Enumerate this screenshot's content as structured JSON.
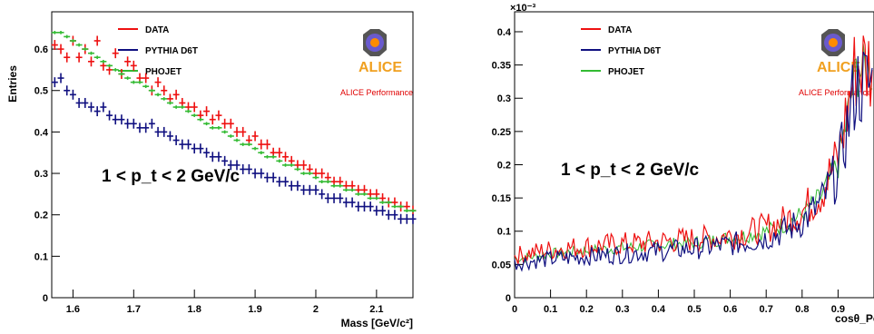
{
  "chart_data": [
    {
      "type": "scatter",
      "ylabel": "Entries",
      "xlabel": "Mass [GeV/c²]",
      "xlim": [
        1.565,
        2.16
      ],
      "ylim": [
        0,
        0.69
      ],
      "xticks": [
        "1.6",
        "1.7",
        "1.8",
        "1.9",
        "2",
        "2.1"
      ],
      "yticks": [
        "0",
        "0.1",
        "0.2",
        "0.3",
        "0.4",
        "0.5",
        "0.6"
      ],
      "annotation": "1 < p_t < 2 GeV/c",
      "performance_label": "ALICE Performance",
      "logo_text": "ALICE",
      "legend_position": "top-center",
      "series": [
        {
          "name": "DATA",
          "color": "#ee1111",
          "start": 1.57,
          "step": 0.01,
          "values": [
            0.61,
            0.6,
            0.58,
            0.62,
            0.58,
            0.6,
            0.57,
            0.62,
            0.56,
            0.55,
            0.59,
            0.54,
            0.57,
            0.56,
            0.53,
            0.53,
            0.5,
            0.52,
            0.5,
            0.48,
            0.49,
            0.47,
            0.46,
            0.46,
            0.44,
            0.45,
            0.43,
            0.44,
            0.42,
            0.42,
            0.4,
            0.4,
            0.38,
            0.39,
            0.37,
            0.37,
            0.35,
            0.35,
            0.34,
            0.33,
            0.32,
            0.32,
            0.31,
            0.3,
            0.3,
            0.29,
            0.28,
            0.28,
            0.27,
            0.27,
            0.26,
            0.26,
            0.25,
            0.25,
            0.24,
            0.23,
            0.23,
            0.22,
            0.22,
            0.21
          ]
        },
        {
          "name": "PYTHIA D6T",
          "color": "#101080",
          "start": 1.57,
          "step": 0.01,
          "values": [
            0.52,
            0.53,
            0.5,
            0.49,
            0.47,
            0.47,
            0.46,
            0.45,
            0.46,
            0.44,
            0.43,
            0.43,
            0.42,
            0.42,
            0.41,
            0.41,
            0.42,
            0.4,
            0.4,
            0.39,
            0.38,
            0.37,
            0.37,
            0.36,
            0.36,
            0.35,
            0.34,
            0.34,
            0.33,
            0.32,
            0.32,
            0.31,
            0.31,
            0.3,
            0.3,
            0.29,
            0.29,
            0.28,
            0.28,
            0.27,
            0.27,
            0.26,
            0.26,
            0.26,
            0.25,
            0.24,
            0.24,
            0.24,
            0.23,
            0.23,
            0.22,
            0.22,
            0.22,
            0.21,
            0.21,
            0.2,
            0.2,
            0.19,
            0.19,
            0.19
          ]
        },
        {
          "name": "PHOJET",
          "color": "#33bb33",
          "start": 1.57,
          "step": 0.01,
          "values": [
            0.64,
            0.64,
            0.63,
            0.62,
            0.61,
            0.6,
            0.59,
            0.58,
            0.57,
            0.56,
            0.55,
            0.54,
            0.53,
            0.52,
            0.52,
            0.51,
            0.5,
            0.49,
            0.48,
            0.47,
            0.46,
            0.46,
            0.45,
            0.44,
            0.43,
            0.42,
            0.41,
            0.41,
            0.4,
            0.39,
            0.38,
            0.37,
            0.37,
            0.36,
            0.35,
            0.34,
            0.34,
            0.33,
            0.32,
            0.32,
            0.31,
            0.3,
            0.3,
            0.29,
            0.28,
            0.28,
            0.27,
            0.27,
            0.26,
            0.26,
            0.25,
            0.25,
            0.24,
            0.24,
            0.23,
            0.23,
            0.22,
            0.22,
            0.21,
            0.21
          ]
        }
      ]
    },
    {
      "type": "line",
      "xlabel": "cosθ_Point",
      "xlim": [
        0,
        1.0
      ],
      "ylim": [
        0,
        0.00043
      ],
      "y_exponent_label": "×10⁻³",
      "xticks": [
        "0",
        "0.1",
        "0.2",
        "0.3",
        "0.4",
        "0.5",
        "0.6",
        "0.7",
        "0.8",
        "0.9"
      ],
      "yticks": [
        "0",
        "0.05",
        "0.1",
        "0.15",
        "0.2",
        "0.25",
        "0.3",
        "0.35",
        "0.4"
      ],
      "annotation": "1 < p_t < 2 GeV/c",
      "performance_label": "ALICE Performance",
      "logo_text": "ALICE",
      "legend_position": "top-center",
      "series": [
        {
          "name": "DATA",
          "color": "#ee1111",
          "start": 0,
          "step": 0.05,
          "values": [
            6.3e-05,
            6.8e-05,
            7.2e-05,
            7.5e-05,
            7.7e-05,
            7.9e-05,
            8.1e-05,
            8.2e-05,
            8.4e-05,
            8.6e-05,
            8.8e-05,
            9e-05,
            9.4e-05,
            9.8e-05,
            0.000105,
            0.000115,
            0.00013,
            0.000155,
            0.00021,
            0.00035
          ]
        },
        {
          "name": "PYTHIA D6T",
          "color": "#101080",
          "start": 0,
          "step": 0.05,
          "values": [
            5.2e-05,
            5.5e-05,
            5.8e-05,
            6e-05,
            6.2e-05,
            6.4e-05,
            6.6e-05,
            6.8e-05,
            7e-05,
            7.2e-05,
            7.4e-05,
            7.7e-05,
            8e-05,
            8.4e-05,
            9e-05,
            0.0001,
            0.000115,
            0.00014,
            0.00019,
            0.00032
          ]
        },
        {
          "name": "PHOJET",
          "color": "#33bb33",
          "start": 0,
          "step": 0.05,
          "values": [
            5.8e-05,
            6.2e-05,
            6.6e-05,
            6.9e-05,
            7.1e-05,
            7.3e-05,
            7.5e-05,
            7.7e-05,
            7.9e-05,
            8.1e-05,
            8.3e-05,
            8.6e-05,
            9e-05,
            9.4e-05,
            0.0001,
            0.00011,
            0.000125,
            0.00015,
            0.0002,
            0.00034
          ]
        }
      ]
    }
  ]
}
